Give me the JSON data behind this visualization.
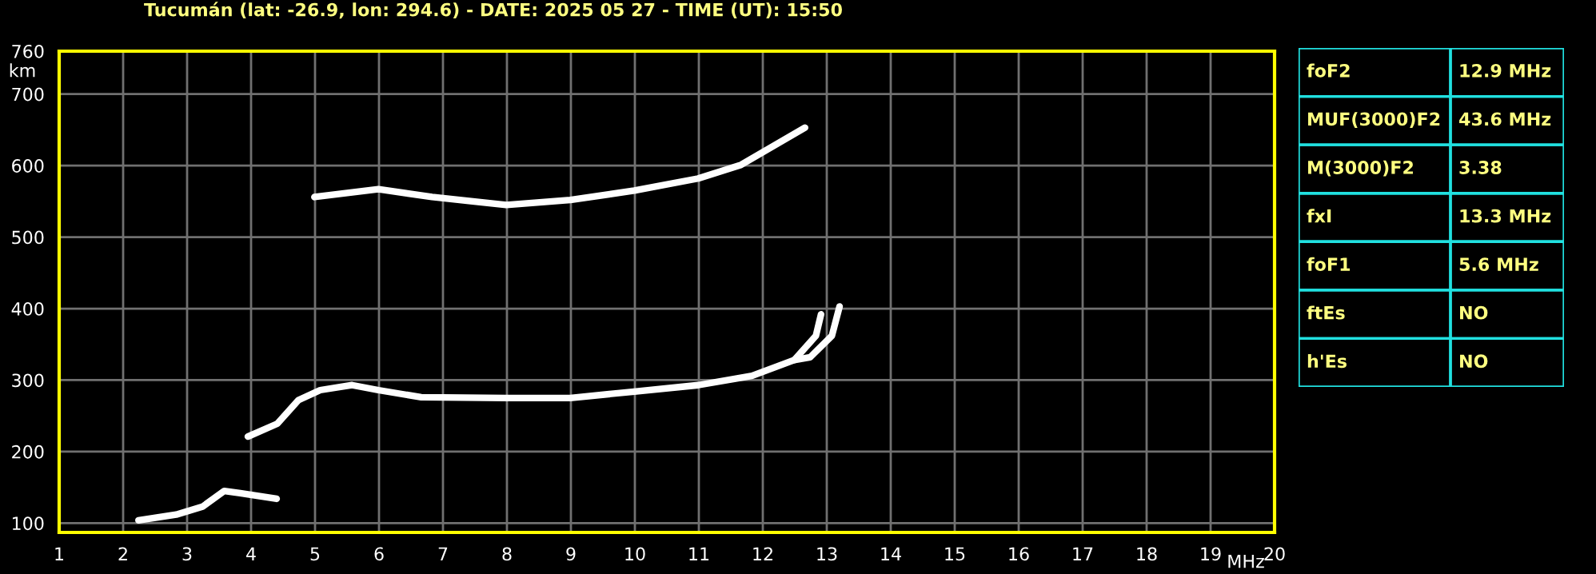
{
  "chart_data": {
    "type": "line",
    "title": "Tucumán (lat: -26.9, lon: 294.6) - DATE: 2025 05 27 - TIME (UT): 15:50",
    "xlabel": "MHz",
    "ylabel": "km",
    "xlim": [
      1,
      20
    ],
    "xticks": [
      1,
      2,
      3,
      4,
      5,
      6,
      7,
      8,
      9,
      10,
      11,
      12,
      13,
      14,
      15,
      16,
      17,
      18,
      19,
      20
    ],
    "ylim": [
      87,
      760
    ],
    "yticks": [
      100,
      200,
      300,
      400,
      500,
      600,
      700,
      760
    ],
    "grid": true,
    "marker": "none",
    "line_style": "solid",
    "series": [
      {
        "color": "#ffffff",
        "x": [
          2.24,
          2.83,
          3.24,
          3.58,
          3.83,
          4.4
        ],
        "values": [
          104,
          112,
          123,
          145,
          142,
          134
        ]
      },
      {
        "color": "#ffffff",
        "x": [
          3.95,
          4.41,
          4.74,
          5.08,
          5.58,
          5.99,
          6.66,
          7.99,
          8.99,
          9.99,
          10.99,
          11.83,
          12.49,
          12.83,
          12.91
        ],
        "values": [
          221,
          239,
          272,
          286,
          293,
          286,
          276,
          275,
          275,
          284,
          293,
          306,
          328,
          362,
          392
        ]
      },
      {
        "color": "#ffffff",
        "x": [
          12.49,
          12.74,
          13.08,
          13.2
        ],
        "values": [
          328,
          332,
          362,
          403
        ]
      },
      {
        "color": "#ffffff",
        "x": [
          4.99,
          5.99,
          6.83,
          7.99,
          8.99,
          9.99,
          10.99,
          11.66,
          12.66
        ],
        "values": [
          556,
          567,
          556,
          545,
          552,
          565,
          582,
          601,
          653
        ]
      }
    ],
    "annotations": [
      "foF2",
      "12.9 MHz",
      "MUF(3000)F2",
      "43.6 MHz",
      "M(3000)F2",
      "3.38",
      "fxI",
      "13.3 MHz",
      "foF1",
      "5.6 MHz",
      "ftEs",
      "NO",
      "h'Es",
      "NO"
    ]
  }
}
